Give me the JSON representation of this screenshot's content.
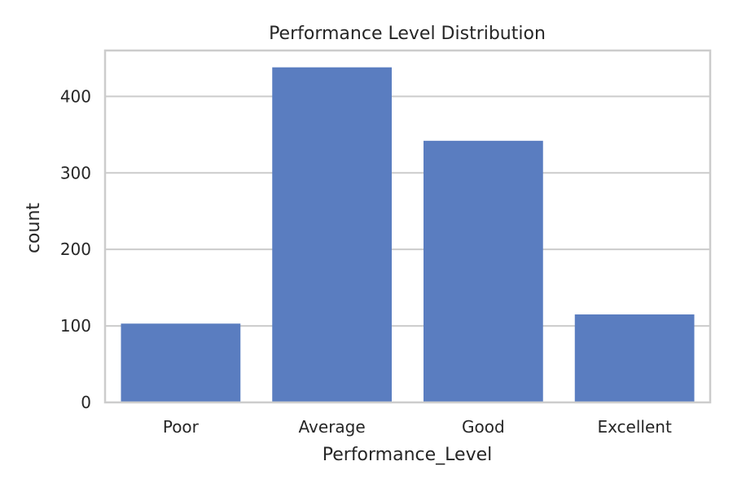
{
  "chart_data": {
    "type": "bar",
    "title": "Performance Level Distribution",
    "xlabel": "Performance_Level",
    "ylabel": "count",
    "categories": [
      "Poor",
      "Average",
      "Good",
      "Excellent"
    ],
    "values": [
      103,
      438,
      342,
      115
    ],
    "ylim": [
      0,
      460
    ],
    "yticks": [
      0,
      100,
      200,
      300,
      400
    ],
    "grid": true,
    "bar_color": "#5a7dc0",
    "grid_color": "#cccccc",
    "spine_color": "#cccccc"
  }
}
